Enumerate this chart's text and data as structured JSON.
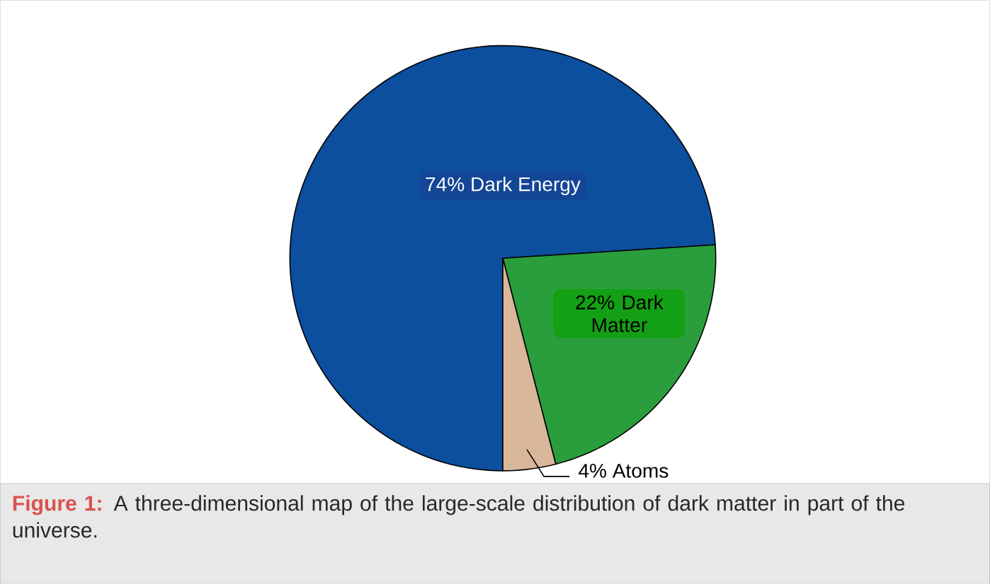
{
  "chart_data": {
    "type": "pie",
    "categories": [
      "74% Dark Energy",
      "22% Dark Matter",
      "4% Atoms"
    ],
    "values": [
      74,
      22,
      4
    ],
    "colors": [
      "#0b4f9e",
      "#2a9e3c",
      "#d8b79a"
    ],
    "annotations": [
      "**Figure 1:**",
      "A three-dimensional map of the large-scale distribution of dark matter in part of the universe."
    ]
  }
}
